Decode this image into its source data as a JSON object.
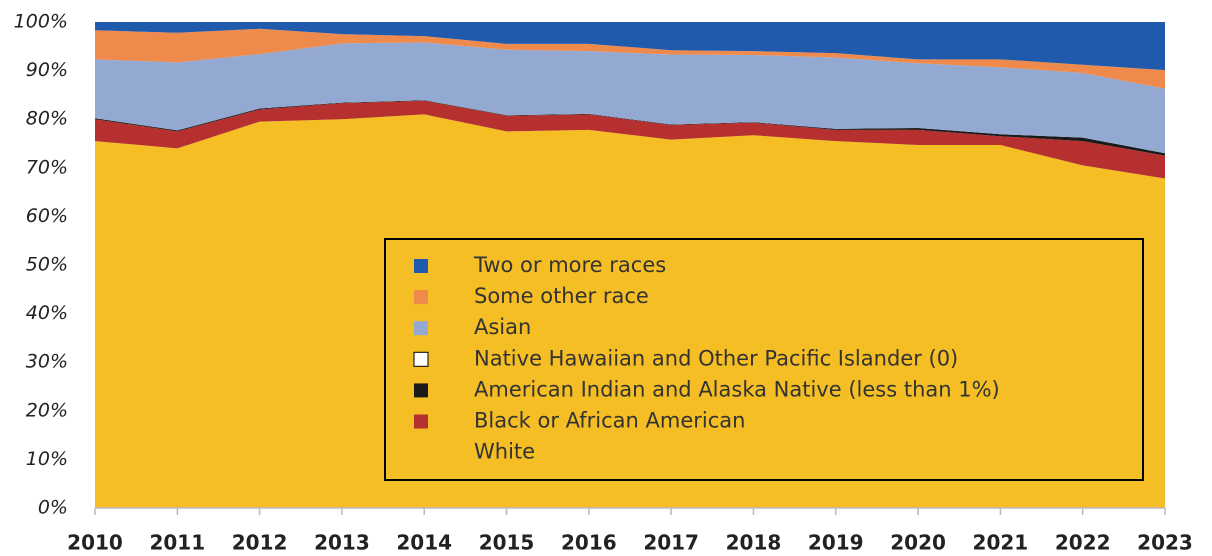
{
  "chart_data": {
    "type": "stacked_area",
    "categories": [
      "2010",
      "2011",
      "2012",
      "2013",
      "2014",
      "2015",
      "2016",
      "2017",
      "2018",
      "2019",
      "2020",
      "2021",
      "2022",
      "2023"
    ],
    "series": [
      {
        "name": "White",
        "color": "#f4be24",
        "values": [
          75.5,
          74,
          79.5,
          80,
          81,
          77.5,
          77.8,
          75.8,
          76.7,
          75.5,
          74.7,
          74.7,
          70.5,
          67.8
        ]
      },
      {
        "name": "Black or African American",
        "color": "#b5302f",
        "values": [
          4.5,
          3.5,
          2.5,
          3.3,
          2.8,
          3.2,
          3.2,
          3.0,
          2.6,
          2.3,
          3.1,
          1.8,
          5.0,
          4.7
        ]
      },
      {
        "name": "American Indian and Alaska Native (less than 1%)",
        "color": "#1a1a1a",
        "values": [
          0.2,
          0.2,
          0.2,
          0.1,
          0.1,
          0.1,
          0.1,
          0.1,
          0.1,
          0.2,
          0.4,
          0.4,
          0.7,
          0.5
        ]
      },
      {
        "name": "Native Hawaiian and Other Pacific Islander (0)",
        "color": "#ffffff",
        "values": [
          0,
          0,
          0,
          0,
          0,
          0,
          0,
          0,
          0,
          0,
          0,
          0,
          0,
          0
        ]
      },
      {
        "name": "Asian",
        "color": "#93a9d1",
        "values": [
          12.1,
          14.0,
          11.2,
          12.2,
          11.9,
          13.5,
          12.9,
          14.4,
          13.8,
          14.7,
          13.3,
          13.8,
          13.3,
          13.3
        ]
      },
      {
        "name": "Some other race",
        "color": "#ef8a4d",
        "values": [
          6.0,
          6.1,
          5.2,
          1.9,
          1.3,
          1.2,
          1.5,
          0.9,
          0.8,
          0.9,
          0.8,
          1.6,
          1.7,
          3.8
        ]
      },
      {
        "name": "Two or more races",
        "color": "#1f5aad",
        "values": [
          1.7,
          2.2,
          1.4,
          2.5,
          2.9,
          4.5,
          4.5,
          5.8,
          6.0,
          6.4,
          7.7,
          7.7,
          8.8,
          9.9
        ]
      }
    ],
    "ylim": [
      0,
      100
    ],
    "yticks": [
      {
        "value": 0,
        "label": "0%"
      },
      {
        "value": 10,
        "label": "10%"
      },
      {
        "value": 20,
        "label": "20%"
      },
      {
        "value": 30,
        "label": "30%"
      },
      {
        "value": 40,
        "label": "40%"
      },
      {
        "value": 50,
        "label": "50%"
      },
      {
        "value": 60,
        "label": "60%"
      },
      {
        "value": 70,
        "label": "70%"
      },
      {
        "value": 80,
        "label": "80%"
      },
      {
        "value": 90,
        "label": "90%"
      },
      {
        "value": 100,
        "label": "100%"
      }
    ],
    "legend": "inside"
  }
}
